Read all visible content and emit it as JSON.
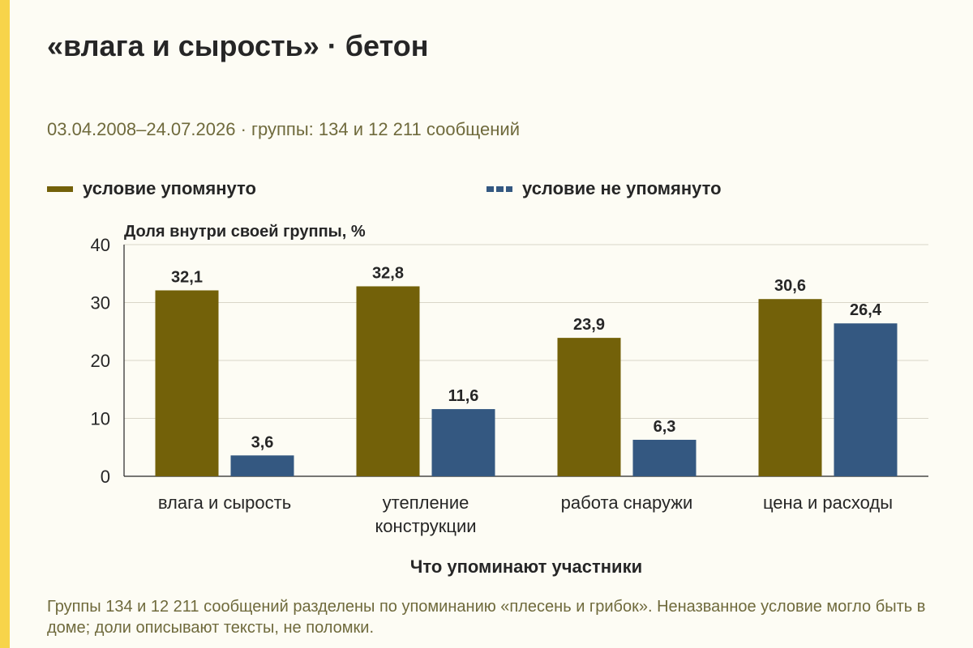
{
  "title": "«влага и сырость» · бетон",
  "subtitle": "03.04.2008–24.07.2026 · группы: 134 и 12 211 сообщений",
  "footnote": "Группы 134 и 12 211 сообщений разделены по упоминанию «плесень и грибок». Неназванное условие могло быть в доме; доли описывают тексты, не поломки.",
  "colors": {
    "mentioned": "#736109",
    "not_mentioned": "#345881",
    "accent": "#f7d44a"
  },
  "chart_data": {
    "type": "bar",
    "title": "«влага и сырость» · бетон",
    "ylabel": "Доля внутри своей группы, %",
    "xlabel": "Что упоминают участники",
    "ylim": [
      0,
      40
    ],
    "yticks": [
      "0",
      "10",
      "20",
      "30",
      "40"
    ],
    "grid": true,
    "legend_position": "top",
    "categories": [
      [
        "влага и сырость"
      ],
      [
        "утепление",
        "конструкции"
      ],
      [
        "работа снаружи"
      ],
      [
        "цена и расходы"
      ]
    ],
    "series": [
      {
        "name": "условие упомянуто",
        "color": "#736109",
        "values": [
          32.1,
          32.8,
          23.9,
          30.6
        ],
        "labels": [
          "32,1",
          "32,8",
          "23,9",
          "30,6"
        ]
      },
      {
        "name": "условие не упомянуто",
        "color": "#345881",
        "values": [
          3.6,
          11.6,
          6.3,
          26.4
        ],
        "labels": [
          "3,6",
          "11,6",
          "6,3",
          "26,4"
        ]
      }
    ]
  }
}
